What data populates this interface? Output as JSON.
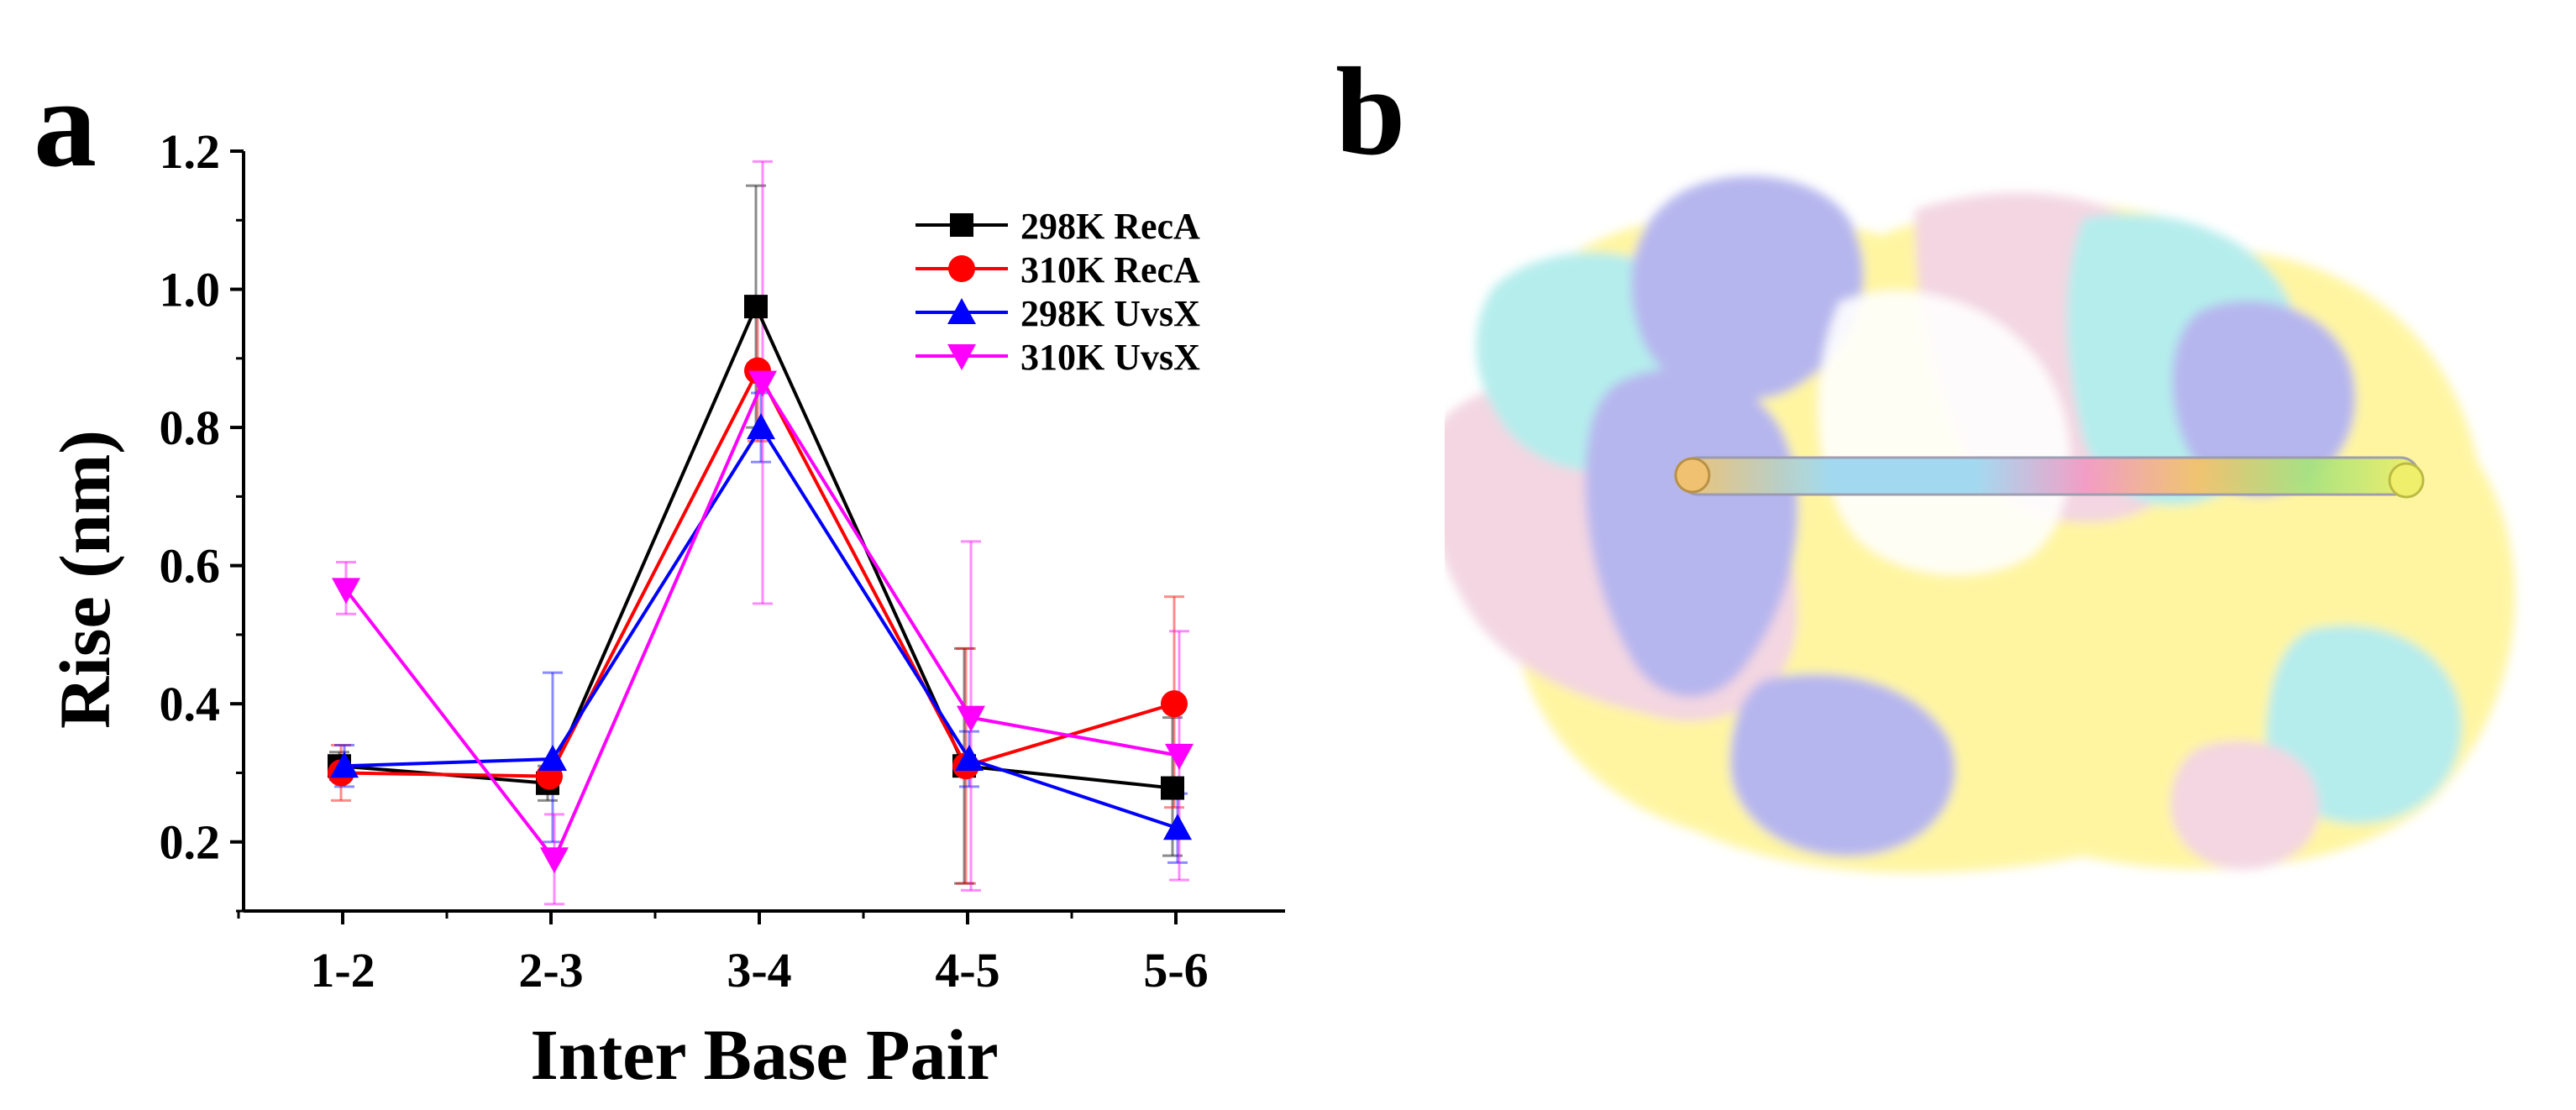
{
  "figure": {
    "panel_a_label": "a",
    "panel_b_label": "b"
  },
  "chart_data": {
    "type": "line",
    "title": "",
    "xlabel": "Inter Base Pair",
    "ylabel": "Rise (nm)",
    "categories": [
      "1-2",
      "2-3",
      "3-4",
      "4-5",
      "5-6"
    ],
    "ylim": [
      0.1,
      1.2
    ],
    "yticks": [
      0.2,
      0.4,
      0.6,
      0.8,
      1.0,
      1.2
    ],
    "ytick_labels": [
      "0.2",
      "0.4",
      "0.6",
      "0.8",
      "1.0",
      "1.2"
    ],
    "grid": false,
    "legend_position": "top-right",
    "series": [
      {
        "name": "298K RecA",
        "color": "#000000",
        "marker": "square",
        "values": [
          0.31,
          0.285,
          0.975,
          0.31,
          0.278
        ],
        "err_low": [
          0.29,
          0.26,
          0.8,
          0.14,
          0.18
        ],
        "err_high": [
          0.33,
          0.31,
          1.15,
          0.48,
          0.38
        ]
      },
      {
        "name": "310K RecA",
        "color": "#ff0000",
        "marker": "circle",
        "values": [
          0.3,
          0.295,
          0.882,
          0.31,
          0.4
        ],
        "err_low": [
          0.26,
          0.27,
          0.78,
          0.14,
          0.25
        ],
        "err_high": [
          0.34,
          0.32,
          0.98,
          0.48,
          0.555
        ]
      },
      {
        "name": "298K UvsX",
        "color": "#0000ff",
        "marker": "triangle-up",
        "values": [
          0.31,
          0.32,
          0.8,
          0.32,
          0.22
        ],
        "err_low": [
          0.28,
          0.2,
          0.75,
          0.28,
          0.17
        ],
        "err_high": [
          0.34,
          0.445,
          0.85,
          0.36,
          0.27
        ]
      },
      {
        "name": "310K UvsX",
        "color": "#ff00ff",
        "marker": "triangle-down",
        "values": [
          0.565,
          0.175,
          0.865,
          0.38,
          0.325
        ],
        "err_low": [
          0.53,
          0.11,
          0.545,
          0.13,
          0.145
        ],
        "err_high": [
          0.605,
          0.24,
          1.185,
          0.635,
          0.505
        ]
      }
    ]
  },
  "structure": {
    "surface_colors": [
      "#fff59d",
      "#b3b3ee",
      "#b2ecec",
      "#f3d4e0"
    ],
    "helix_colors": [
      "#f4c26b",
      "#9fd8f0",
      "#f39bc4",
      "#a7e37f",
      "#f0ef6a"
    ]
  }
}
